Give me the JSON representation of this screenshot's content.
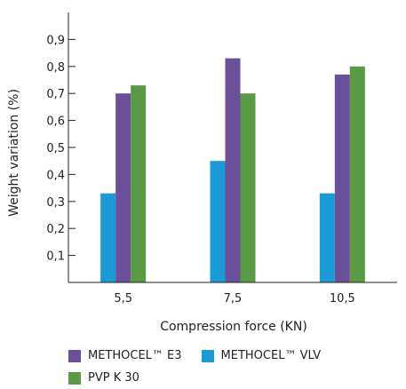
{
  "chart_data": {
    "type": "bar",
    "xlabel": "Compression force (KN)",
    "ylabel": "Weight variation (%)",
    "categories": [
      "5,5",
      "7,5",
      "10,5"
    ],
    "yticks": [
      "0,1",
      "0,2",
      "0,3",
      "0,4",
      "0,5",
      "0,6",
      "0,7",
      "0,8",
      "0,9"
    ],
    "ylim": [
      0,
      1.0
    ],
    "grid": false,
    "legend_position": "bottom",
    "series": [
      {
        "name": "METHOCEL™ VLV",
        "color": "#1a9ad6",
        "values": [
          0.33,
          0.45,
          0.33
        ]
      },
      {
        "name": "METHOCEL™ E3",
        "color": "#6b4f9a",
        "values": [
          0.7,
          0.83,
          0.77
        ]
      },
      {
        "name": "PVP K 30",
        "color": "#5b9a45",
        "values": [
          0.73,
          0.7,
          0.8
        ]
      }
    ],
    "legend": [
      {
        "name": "METHOCEL™ E3",
        "color": "#6b4f9a"
      },
      {
        "name": "METHOCEL™ VLV",
        "color": "#1a9ad6"
      },
      {
        "name": "PVP K 30",
        "color": "#5b9a45"
      }
    ]
  }
}
